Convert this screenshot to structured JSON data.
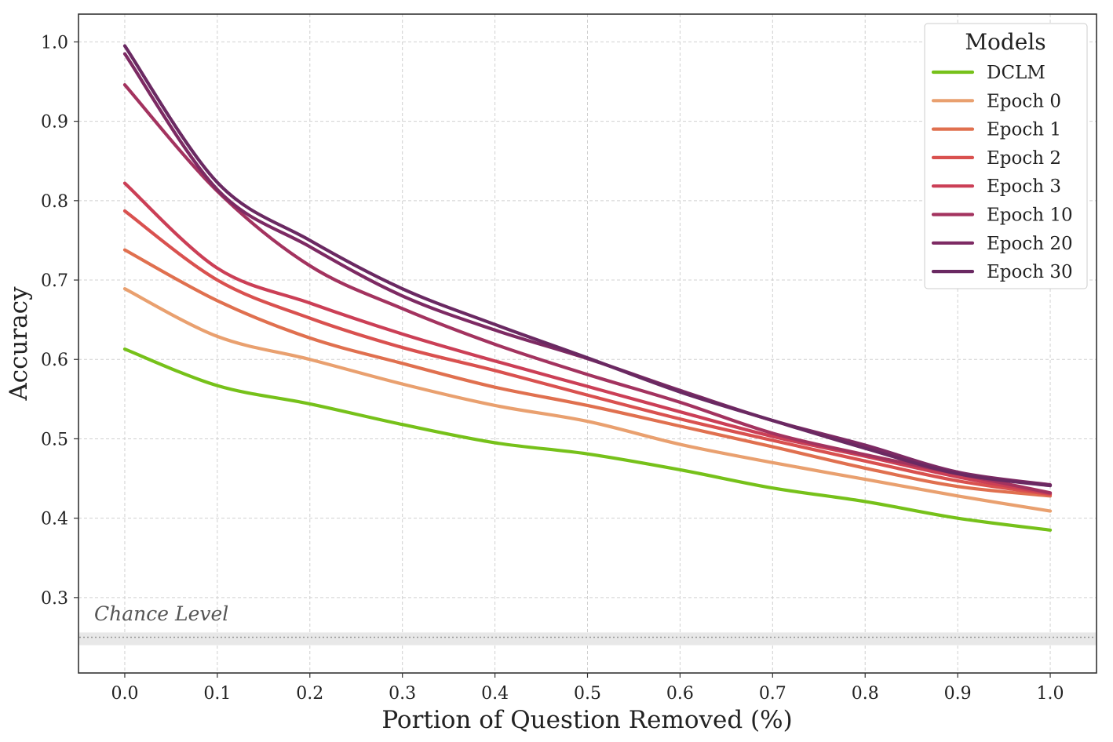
{
  "chart_data": {
    "type": "line",
    "xlabel": "Portion of Question Removed (%)",
    "ylabel": "Accuracy",
    "xlim": [
      -0.05,
      1.05
    ],
    "ylim": [
      0.205,
      1.035
    ],
    "x_ticks": [
      0.0,
      0.1,
      0.2,
      0.3,
      0.4,
      0.5,
      0.6,
      0.7,
      0.8,
      0.9,
      1.0
    ],
    "x_tick_labels": [
      "0.0",
      "0.1",
      "0.2",
      "0.3",
      "0.4",
      "0.5",
      "0.6",
      "0.7",
      "0.8",
      "0.9",
      "1.0"
    ],
    "y_ticks": [
      0.3,
      0.4,
      0.5,
      0.6,
      0.7,
      0.8,
      0.9,
      1.0
    ],
    "y_tick_labels": [
      "0.3",
      "0.4",
      "0.5",
      "0.6",
      "0.7",
      "0.8",
      "0.9",
      "1.0"
    ],
    "grid": true,
    "legend": {
      "title": "Models",
      "placement": "top-right"
    },
    "chance_level": {
      "label": "Chance Level",
      "value": 0.25,
      "band": [
        0.24,
        0.256
      ],
      "color": "#e8e8e8"
    },
    "x": [
      0.0,
      0.1,
      0.2,
      0.3,
      0.4,
      0.5,
      0.6,
      0.7,
      0.8,
      0.9,
      1.0
    ],
    "series": [
      {
        "name": "DCLM",
        "color": "#76c11a",
        "values": [
          0.613,
          0.567,
          0.544,
          0.518,
          0.495,
          0.481,
          0.461,
          0.438,
          0.421,
          0.4,
          0.385
        ]
      },
      {
        "name": "Epoch 0",
        "color": "#e9a06f",
        "values": [
          0.689,
          0.629,
          0.6,
          0.569,
          0.542,
          0.522,
          0.493,
          0.47,
          0.449,
          0.428,
          0.409
        ]
      },
      {
        "name": "Epoch 1",
        "color": "#e0704f",
        "values": [
          0.738,
          0.674,
          0.627,
          0.595,
          0.565,
          0.542,
          0.516,
          0.49,
          0.463,
          0.44,
          0.428
        ]
      },
      {
        "name": "Epoch 2",
        "color": "#d9514f",
        "values": [
          0.787,
          0.7,
          0.652,
          0.615,
          0.586,
          0.555,
          0.525,
          0.498,
          0.472,
          0.447,
          0.43
        ]
      },
      {
        "name": "Epoch 3",
        "color": "#cb3f56",
        "values": [
          0.822,
          0.715,
          0.671,
          0.632,
          0.598,
          0.566,
          0.534,
          0.503,
          0.478,
          0.452,
          0.431
        ]
      },
      {
        "name": "Epoch 10",
        "color": "#a3335f",
        "values": [
          0.946,
          0.812,
          0.718,
          0.664,
          0.619,
          0.581,
          0.546,
          0.507,
          0.48,
          0.456,
          0.432
        ]
      },
      {
        "name": "Epoch 20",
        "color": "#7d2a63",
        "values": [
          0.985,
          0.814,
          0.742,
          0.68,
          0.637,
          0.601,
          0.561,
          0.523,
          0.492,
          0.458,
          0.442
        ]
      },
      {
        "name": "Epoch 30",
        "color": "#6a2962",
        "values": [
          0.995,
          0.823,
          0.75,
          0.689,
          0.644,
          0.602,
          0.559,
          0.523,
          0.488,
          0.456,
          0.441
        ]
      }
    ]
  }
}
